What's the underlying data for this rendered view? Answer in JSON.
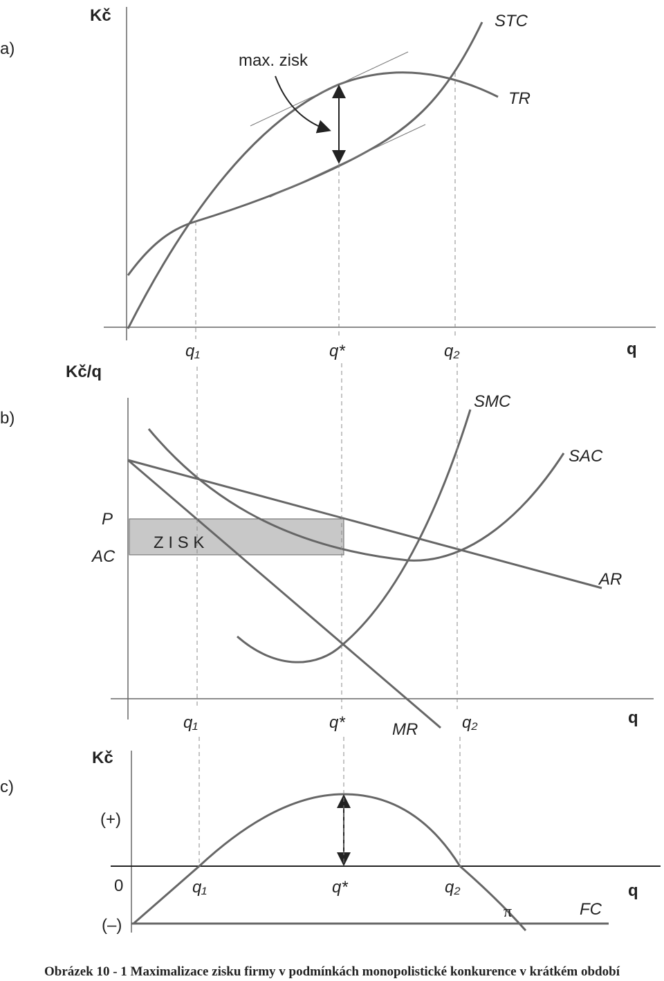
{
  "panel_a": {
    "label": "a)",
    "y_axis": "Kč",
    "annotation": "max. zisk",
    "curves": [
      "STC",
      "TR"
    ],
    "x_labels": [
      "q₁",
      "q*",
      "q₂",
      "q"
    ]
  },
  "panel_b": {
    "label": "b)",
    "y_axis": "Kč/q",
    "curves": [
      "SMC",
      "SAC",
      "AR",
      "MR"
    ],
    "price": "P",
    "avg_cost": "AC",
    "profit_area": "Z I S K",
    "x_labels": [
      "q₁",
      "q*",
      "q₂",
      "q"
    ]
  },
  "panel_c": {
    "label": "c)",
    "y_axis": "Kč",
    "positive": "(+)",
    "zero": "0",
    "negative": "(–)",
    "curves": [
      "π",
      "FC"
    ],
    "x_labels": [
      "q₁",
      "q*",
      "q₂",
      "q"
    ]
  },
  "caption": "Obrázek 10 - 1 Maximalizace zisku firmy v podmínkách monopolistické konkurence v krátkém období"
}
